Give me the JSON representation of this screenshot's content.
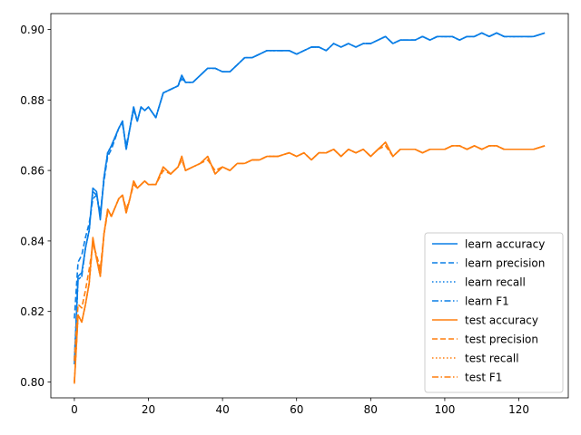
{
  "chart_data": {
    "type": "line",
    "title": "",
    "xlabel": "",
    "ylabel": "",
    "xlim": [
      -6.35,
      133.35
    ],
    "ylim": [
      0.7955,
      0.9045
    ],
    "grid": false,
    "legend_placement": "lower-right",
    "x_ticks": [
      0,
      20,
      40,
      60,
      80,
      100,
      120
    ],
    "y_ticks": [
      0.8,
      0.82,
      0.84,
      0.86,
      0.88,
      0.9
    ],
    "y_tick_labels": [
      "0.80",
      "0.82",
      "0.84",
      "0.86",
      "0.88",
      "0.90"
    ],
    "x_tick_labels": [
      "0",
      "20",
      "40",
      "60",
      "80",
      "100",
      "120"
    ],
    "x": [
      0,
      1,
      2,
      3,
      4,
      5,
      6,
      7,
      8,
      9,
      10,
      12,
      13,
      14,
      15,
      16,
      17,
      18,
      19,
      20,
      22,
      24,
      26,
      28,
      29,
      30,
      32,
      34,
      36,
      38,
      40,
      42,
      44,
      46,
      48,
      50,
      52,
      55,
      58,
      60,
      62,
      64,
      66,
      68,
      70,
      72,
      74,
      76,
      78,
      80,
      82,
      84,
      86,
      88,
      90,
      92,
      94,
      96,
      98,
      100,
      102,
      104,
      106,
      108,
      110,
      112,
      114,
      116,
      118,
      120,
      122,
      124,
      127
    ],
    "series": [
      {
        "name": "learn accuracy",
        "color": "#1f77b4",
        "linestyle": "solid",
        "color_hex": "#0a7ee6",
        "values": [
          0.805,
          0.83,
          0.831,
          0.838,
          0.843,
          0.855,
          0.854,
          0.846,
          0.858,
          0.865,
          0.867,
          0.872,
          0.874,
          0.866,
          0.872,
          0.878,
          0.874,
          0.878,
          0.877,
          0.878,
          0.875,
          0.882,
          0.883,
          0.884,
          0.887,
          0.885,
          0.885,
          0.887,
          0.889,
          0.889,
          0.888,
          0.888,
          0.89,
          0.892,
          0.892,
          0.893,
          0.894,
          0.894,
          0.894,
          0.893,
          0.894,
          0.895,
          0.895,
          0.894,
          0.896,
          0.895,
          0.896,
          0.895,
          0.896,
          0.896,
          0.897,
          0.898,
          0.896,
          0.897,
          0.897,
          0.897,
          0.898,
          0.897,
          0.898,
          0.898,
          0.898,
          0.897,
          0.898,
          0.898,
          0.899,
          0.898,
          0.899,
          0.898,
          0.898,
          0.898,
          0.898,
          0.898,
          0.899
        ]
      },
      {
        "name": "learn precision",
        "color": "#0a7ee6",
        "linestyle": "dashed",
        "values": [
          0.818,
          0.834,
          0.836,
          0.841,
          0.845,
          0.852,
          0.853,
          0.848,
          0.857,
          0.864,
          0.866,
          0.872,
          0.873,
          0.867,
          0.872,
          0.877,
          0.874,
          0.878,
          0.877,
          0.878,
          0.875,
          0.882,
          0.883,
          0.884,
          0.886,
          0.885,
          0.885,
          0.887,
          0.889,
          0.889,
          0.888,
          0.888,
          0.89,
          0.892,
          0.892,
          0.893,
          0.894,
          0.894,
          0.894,
          0.893,
          0.894,
          0.895,
          0.895,
          0.894,
          0.896,
          0.895,
          0.896,
          0.895,
          0.896,
          0.896,
          0.897,
          0.898,
          0.896,
          0.897,
          0.897,
          0.897,
          0.898,
          0.897,
          0.898,
          0.898,
          0.898,
          0.897,
          0.898,
          0.898,
          0.899,
          0.898,
          0.899,
          0.898,
          0.898,
          0.898,
          0.898,
          0.898,
          0.899
        ]
      },
      {
        "name": "learn recall",
        "color": "#0a7ee6",
        "linestyle": "dotted",
        "values": [
          0.806,
          0.829,
          0.83,
          0.838,
          0.843,
          0.854,
          0.853,
          0.847,
          0.858,
          0.865,
          0.867,
          0.872,
          0.874,
          0.866,
          0.872,
          0.878,
          0.874,
          0.878,
          0.877,
          0.878,
          0.875,
          0.882,
          0.883,
          0.884,
          0.887,
          0.885,
          0.885,
          0.887,
          0.889,
          0.889,
          0.888,
          0.888,
          0.89,
          0.892,
          0.892,
          0.893,
          0.894,
          0.894,
          0.894,
          0.893,
          0.894,
          0.895,
          0.895,
          0.894,
          0.896,
          0.895,
          0.896,
          0.895,
          0.896,
          0.896,
          0.897,
          0.898,
          0.896,
          0.897,
          0.897,
          0.897,
          0.898,
          0.897,
          0.898,
          0.898,
          0.898,
          0.897,
          0.898,
          0.898,
          0.899,
          0.898,
          0.899,
          0.898,
          0.898,
          0.898,
          0.898,
          0.898,
          0.899
        ]
      },
      {
        "name": "learn F1",
        "color": "#0a7ee6",
        "linestyle": "dashdot",
        "values": [
          0.806,
          0.829,
          0.83,
          0.838,
          0.843,
          0.854,
          0.853,
          0.847,
          0.858,
          0.865,
          0.867,
          0.872,
          0.874,
          0.866,
          0.872,
          0.878,
          0.874,
          0.878,
          0.877,
          0.878,
          0.875,
          0.882,
          0.883,
          0.884,
          0.887,
          0.885,
          0.885,
          0.887,
          0.889,
          0.889,
          0.888,
          0.888,
          0.89,
          0.892,
          0.892,
          0.893,
          0.894,
          0.894,
          0.894,
          0.893,
          0.894,
          0.895,
          0.895,
          0.894,
          0.896,
          0.895,
          0.896,
          0.895,
          0.896,
          0.896,
          0.897,
          0.898,
          0.896,
          0.897,
          0.897,
          0.897,
          0.898,
          0.897,
          0.898,
          0.898,
          0.898,
          0.897,
          0.898,
          0.898,
          0.899,
          0.898,
          0.899,
          0.898,
          0.898,
          0.898,
          0.898,
          0.898,
          0.899
        ]
      },
      {
        "name": "test accuracy",
        "color": "#ff7f0e",
        "linestyle": "solid",
        "values": [
          0.7995,
          0.819,
          0.817,
          0.822,
          0.828,
          0.841,
          0.835,
          0.83,
          0.842,
          0.849,
          0.847,
          0.852,
          0.853,
          0.848,
          0.852,
          0.857,
          0.855,
          0.856,
          0.857,
          0.856,
          0.856,
          0.861,
          0.859,
          0.861,
          0.864,
          0.86,
          0.861,
          0.862,
          0.864,
          0.859,
          0.861,
          0.86,
          0.862,
          0.862,
          0.863,
          0.863,
          0.864,
          0.864,
          0.865,
          0.864,
          0.865,
          0.863,
          0.865,
          0.865,
          0.866,
          0.864,
          0.866,
          0.865,
          0.866,
          0.864,
          0.866,
          0.868,
          0.864,
          0.866,
          0.866,
          0.866,
          0.865,
          0.866,
          0.866,
          0.866,
          0.867,
          0.867,
          0.866,
          0.867,
          0.866,
          0.867,
          0.867,
          0.866,
          0.866,
          0.866,
          0.866,
          0.866,
          0.867
        ]
      },
      {
        "name": "test precision",
        "color": "#ff7f0e",
        "linestyle": "dashed",
        "values": [
          0.806,
          0.822,
          0.821,
          0.826,
          0.832,
          0.839,
          0.836,
          0.832,
          0.842,
          0.848,
          0.847,
          0.852,
          0.853,
          0.849,
          0.852,
          0.856,
          0.855,
          0.856,
          0.857,
          0.856,
          0.856,
          0.86,
          0.859,
          0.861,
          0.863,
          0.86,
          0.861,
          0.862,
          0.863,
          0.86,
          0.861,
          0.86,
          0.862,
          0.862,
          0.863,
          0.863,
          0.864,
          0.864,
          0.865,
          0.864,
          0.865,
          0.863,
          0.865,
          0.865,
          0.866,
          0.864,
          0.866,
          0.865,
          0.866,
          0.864,
          0.866,
          0.867,
          0.864,
          0.866,
          0.866,
          0.866,
          0.865,
          0.866,
          0.866,
          0.866,
          0.867,
          0.867,
          0.866,
          0.867,
          0.866,
          0.867,
          0.867,
          0.866,
          0.866,
          0.866,
          0.866,
          0.866,
          0.867
        ]
      },
      {
        "name": "test recall",
        "color": "#ff7f0e",
        "linestyle": "dotted",
        "values": [
          0.8,
          0.819,
          0.817,
          0.822,
          0.828,
          0.84,
          0.835,
          0.83,
          0.842,
          0.849,
          0.847,
          0.852,
          0.853,
          0.848,
          0.852,
          0.857,
          0.855,
          0.856,
          0.857,
          0.856,
          0.856,
          0.861,
          0.859,
          0.861,
          0.864,
          0.86,
          0.861,
          0.862,
          0.864,
          0.859,
          0.861,
          0.86,
          0.862,
          0.862,
          0.863,
          0.863,
          0.864,
          0.864,
          0.865,
          0.864,
          0.865,
          0.863,
          0.865,
          0.865,
          0.866,
          0.864,
          0.866,
          0.865,
          0.866,
          0.864,
          0.866,
          0.868,
          0.864,
          0.866,
          0.866,
          0.866,
          0.865,
          0.866,
          0.866,
          0.866,
          0.867,
          0.867,
          0.866,
          0.867,
          0.866,
          0.867,
          0.867,
          0.866,
          0.866,
          0.866,
          0.866,
          0.866,
          0.867
        ]
      },
      {
        "name": "test F1",
        "color": "#ff7f0e",
        "linestyle": "dashdot",
        "values": [
          0.8,
          0.819,
          0.817,
          0.822,
          0.828,
          0.84,
          0.835,
          0.83,
          0.842,
          0.849,
          0.847,
          0.852,
          0.853,
          0.848,
          0.852,
          0.857,
          0.855,
          0.856,
          0.857,
          0.856,
          0.856,
          0.861,
          0.859,
          0.861,
          0.864,
          0.86,
          0.861,
          0.862,
          0.864,
          0.859,
          0.861,
          0.86,
          0.862,
          0.862,
          0.863,
          0.863,
          0.864,
          0.864,
          0.865,
          0.864,
          0.865,
          0.863,
          0.865,
          0.865,
          0.866,
          0.864,
          0.866,
          0.865,
          0.866,
          0.864,
          0.866,
          0.868,
          0.864,
          0.866,
          0.866,
          0.866,
          0.865,
          0.866,
          0.866,
          0.866,
          0.867,
          0.867,
          0.866,
          0.867,
          0.866,
          0.867,
          0.867,
          0.866,
          0.866,
          0.866,
          0.866,
          0.866,
          0.867
        ]
      }
    ]
  }
}
